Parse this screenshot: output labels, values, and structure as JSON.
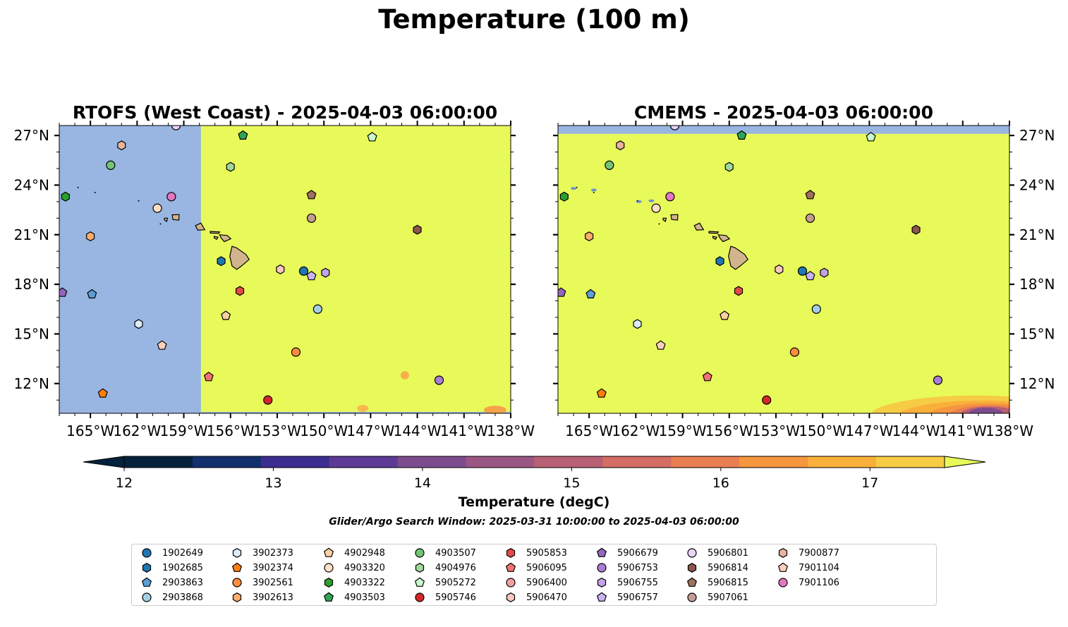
{
  "figure": {
    "title": "Temperature (100 m)",
    "caption": "Glider/Argo Search Window: 2025-03-31 10:00:00 to 2025-04-03 06:00:00"
  },
  "colors": {
    "ocean_nodata": "#98b6e1",
    "warm_fill": "#e7fa5a",
    "land": "#d2b48c",
    "legend_border": "#cccccc",
    "colorbar": [
      "#04223c",
      "#12306e",
      "#3c2e90",
      "#5c3a96",
      "#7d4c8e",
      "#9b5784",
      "#b96074",
      "#d46d64",
      "#ea7e52",
      "#f6963f",
      "#f9b03a",
      "#f6cc45"
    ],
    "colorbar_under": "#04223c",
    "colorbar_over": "#e7fa5a"
  },
  "chart_data": [
    {
      "type": "heatmap",
      "title": "RTOFS (West Coast) - 2025-04-03 06:00:00",
      "xlim": [
        -167,
        -138
      ],
      "ylim": [
        10.2,
        27.6
      ],
      "x_ticks": [
        "165°W",
        "162°W",
        "159°W",
        "156°W",
        "153°W",
        "150°W",
        "147°W",
        "144°W",
        "141°W",
        "138°W"
      ],
      "y_ticks": [
        "12°N",
        "15°N",
        "18°N",
        "21°N",
        "24°N",
        "27°N"
      ],
      "y_axis_side": "left",
      "no_data_region_lon": [
        -167,
        -157.9
      ],
      "field_value_bulk": "above 17.5 degC"
    },
    {
      "type": "heatmap",
      "title": "CMEMS - 2025-04-03 06:00:00",
      "xlim": [
        -167,
        -138
      ],
      "ylim": [
        10.2,
        27.6
      ],
      "x_ticks": [
        "165°W",
        "162°W",
        "159°W",
        "156°W",
        "153°W",
        "150°W",
        "147°W",
        "144°W",
        "141°W",
        "138°W"
      ],
      "y_ticks": [
        "12°N",
        "15°N",
        "18°N",
        "21°N",
        "24°N",
        "27°N"
      ],
      "y_axis_side": "right",
      "no_data_region_lat": [
        27.1,
        27.6
      ],
      "field_value_bulk": "above 17.5 degC"
    }
  ],
  "colorbar": {
    "label": "Temperature (degC)",
    "min": 12,
    "max": 17.5,
    "step": 0.5,
    "ticks": [
      12,
      13,
      14,
      15,
      16,
      17
    ],
    "extend": "both"
  },
  "floats": [
    {
      "id": "1902649",
      "marker": "circle",
      "color": "#1f77b4",
      "lon": -151.3,
      "lat": 18.8
    },
    {
      "id": "1902685",
      "marker": "hexagon",
      "color": "#1f77b4",
      "lon": -156.6,
      "lat": 19.4
    },
    {
      "id": "2903863",
      "marker": "pentagon",
      "color": "#5a9fd6",
      "lon": -164.9,
      "lat": 17.4
    },
    {
      "id": "2903868",
      "marker": "circle",
      "color": "#a6cee3",
      "lon": -150.4,
      "lat": 16.5
    },
    {
      "id": "3902373",
      "marker": "hexagon",
      "color": "#deebf7",
      "lon": -161.9,
      "lat": 15.6
    },
    {
      "id": "3902374",
      "marker": "pentagon",
      "color": "#ff7f0e",
      "lon": -164.2,
      "lat": 11.4
    },
    {
      "id": "3902561",
      "marker": "circle",
      "color": "#fd8d3c",
      "lon": -151.8,
      "lat": 13.9
    },
    {
      "id": "3902613",
      "marker": "hexagon",
      "color": "#fdae6b",
      "lon": -165.0,
      "lat": 20.9
    },
    {
      "id": "4902948",
      "marker": "pentagon",
      "color": "#fdd0a2",
      "lon": -156.3,
      "lat": 16.1
    },
    {
      "id": "4903320",
      "marker": "circle",
      "color": "#fde0c5",
      "lon": -160.7,
      "lat": 22.6
    },
    {
      "id": "4903322",
      "marker": "hexagon",
      "color": "#2ca02c",
      "lon": -166.6,
      "lat": 23.3
    },
    {
      "id": "4903503",
      "marker": "pentagon",
      "color": "#31a354",
      "lon": -155.2,
      "lat": 27.0
    },
    {
      "id": "4903507",
      "marker": "circle",
      "color": "#74c476",
      "lon": -163.7,
      "lat": 25.2
    },
    {
      "id": "4904976",
      "marker": "hexagon",
      "color": "#a1d99b",
      "lon": -156.0,
      "lat": 25.1
    },
    {
      "id": "5905272",
      "marker": "pentagon",
      "color": "#c7f9cc",
      "lon": -146.9,
      "lat": 26.9
    },
    {
      "id": "5905746",
      "marker": "circle",
      "color": "#d62728",
      "lon": -153.6,
      "lat": 11.0
    },
    {
      "id": "5905853",
      "marker": "hexagon",
      "color": "#e34a4a",
      "lon": -155.4,
      "lat": 17.6
    },
    {
      "id": "5906095",
      "marker": "pentagon",
      "color": "#f07373",
      "lon": -157.4,
      "lat": 12.4
    },
    {
      "id": "5906400",
      "marker": "circle",
      "color": "#f4a0a0",
      "lon": -159.5,
      "lat": 27.6
    },
    {
      "id": "5906470",
      "marker": "hexagon",
      "color": "#fcc5c0",
      "lon": -152.8,
      "lat": 18.9
    },
    {
      "id": "5906679",
      "marker": "pentagon",
      "color": "#9467bd",
      "lon": -166.8,
      "lat": 17.5
    },
    {
      "id": "5906753",
      "marker": "circle",
      "color": "#a87fd4",
      "lon": -142.6,
      "lat": 12.2
    },
    {
      "id": "5906755",
      "marker": "hexagon",
      "color": "#c5a3e8",
      "lon": -149.9,
      "lat": 18.7
    },
    {
      "id": "5906757",
      "marker": "pentagon",
      "color": "#c9b3f5",
      "lon": -150.8,
      "lat": 18.5
    },
    {
      "id": "5906801",
      "marker": "circle",
      "color": "#e7d4f7",
      "lon": -159.5,
      "lat": 27.6
    },
    {
      "id": "5906814",
      "marker": "hexagon",
      "color": "#8c564b",
      "lon": -144.0,
      "lat": 21.3
    },
    {
      "id": "5906815",
      "marker": "pentagon",
      "color": "#a0705e",
      "lon": -150.8,
      "lat": 23.4
    },
    {
      "id": "5907061",
      "marker": "circle",
      "color": "#c49c94",
      "lon": -150.8,
      "lat": 22.0
    },
    {
      "id": "7900877",
      "marker": "hexagon",
      "color": "#e8b4a0",
      "lon": -163.0,
      "lat": 26.4
    },
    {
      "id": "7901104",
      "marker": "pentagon",
      "color": "#fccfbd",
      "lon": -160.4,
      "lat": 14.3
    },
    {
      "id": "7901106",
      "marker": "circle",
      "color": "#e377c2",
      "lon": -159.8,
      "lat": 23.3
    }
  ]
}
